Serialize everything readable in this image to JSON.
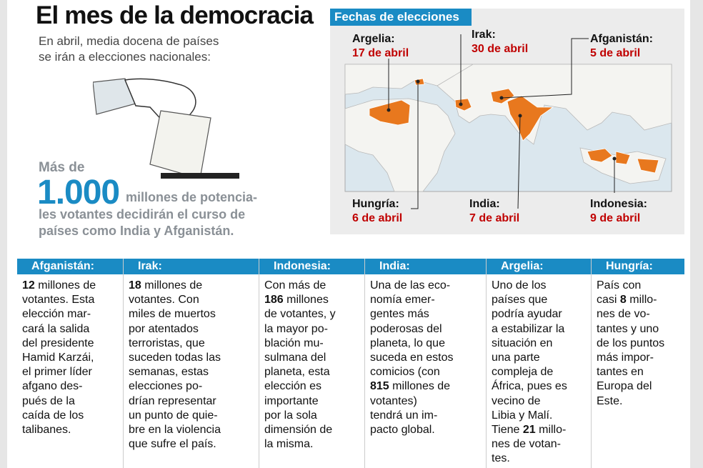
{
  "header": {
    "title": "El mes de la democracia",
    "subtitle_lines": [
      "En abril, media docena de países",
      "se irán a elecciones nacionales:"
    ]
  },
  "highlight": {
    "prefix": "Más de",
    "number": "1.000",
    "lines": [
      "millones de potencia-",
      "les votantes decidirán el curso de",
      "países como India y Afganistán."
    ]
  },
  "map": {
    "title": "Fechas de elecciones",
    "labels": [
      {
        "country": "Argelia:",
        "date": "17 de abril"
      },
      {
        "country": "Irak:",
        "date": "30 de abril"
      },
      {
        "country": "Afganistán:",
        "date": "5 de abril"
      },
      {
        "country": "Hungría:",
        "date": "6 de abril"
      },
      {
        "country": "India:",
        "date": "7 de abril"
      },
      {
        "country": "Indonesia:",
        "date": "9 de abril"
      }
    ]
  },
  "columns": [
    {
      "title": "Afganistán:",
      "lines": [
        [
          {
            "text": "12",
            "bold": true
          },
          " millones de"
        ],
        [
          "votantes. Esta"
        ],
        [
          "elección mar-"
        ],
        [
          "cará la salida"
        ],
        [
          "del presidente"
        ],
        [
          "Hamid Karzái,"
        ],
        [
          "el primer líder"
        ],
        [
          "afgano des-"
        ],
        [
          "pués de la"
        ],
        [
          "caída de los"
        ],
        [
          "talibanes."
        ]
      ]
    },
    {
      "title": "Irak:",
      "lines": [
        [
          {
            "text": "18",
            "bold": true
          },
          " millones de"
        ],
        [
          "votantes. Con"
        ],
        [
          "miles de muertos"
        ],
        [
          "por atentados"
        ],
        [
          "terroristas, que"
        ],
        [
          "suceden todas las"
        ],
        [
          "semanas, estas"
        ],
        [
          "elecciones po-"
        ],
        [
          "drían representar"
        ],
        [
          "un punto de quie-"
        ],
        [
          "bre en la violencia"
        ],
        [
          "que sufre el país."
        ]
      ]
    },
    {
      "title": "Indonesia:",
      "lines": [
        [
          "Con más de"
        ],
        [
          {
            "text": "186",
            "bold": true
          },
          " millones"
        ],
        [
          "de votantes, y"
        ],
        [
          "la mayor po-"
        ],
        [
          "blación mu-"
        ],
        [
          "sulmana del"
        ],
        [
          "planeta, esta"
        ],
        [
          "elección es"
        ],
        [
          "importante"
        ],
        [
          "por la sola"
        ],
        [
          "dimensión de"
        ],
        [
          "la misma."
        ]
      ]
    },
    {
      "title": "India:",
      "lines": [
        [
          "Una de las eco-"
        ],
        [
          "nomía emer-"
        ],
        [
          "gentes más"
        ],
        [
          "poderosas del"
        ],
        [
          "planeta, lo que"
        ],
        [
          "suceda en estos"
        ],
        [
          "comicios (con"
        ],
        [
          {
            "text": "815",
            "bold": true
          },
          " millones de"
        ],
        [
          "votantes)"
        ],
        [
          "tendrá un im-"
        ],
        [
          "pacto global."
        ]
      ]
    },
    {
      "title": "Argelia:",
      "lines": [
        [
          "Uno de los"
        ],
        [
          "países que"
        ],
        [
          "podría ayudar"
        ],
        [
          "a estabilizar la"
        ],
        [
          "situación en"
        ],
        [
          "una parte"
        ],
        [
          "compleja de"
        ],
        [
          "África, pues es"
        ],
        [
          "vecino de"
        ],
        [
          "Libia y Malí."
        ],
        [
          "Tiene ",
          {
            "text": "21",
            "bold": true
          },
          " millo-"
        ],
        [
          "nes de votan-"
        ],
        [
          "tes."
        ]
      ]
    },
    {
      "title": "Hungría:",
      "lines": [
        [
          "País con"
        ],
        [
          "casi ",
          {
            "text": "8",
            "bold": true
          },
          " millo-"
        ],
        [
          "nes de vo-"
        ],
        [
          "tantes y uno"
        ],
        [
          "de los puntos"
        ],
        [
          "más impor-"
        ],
        [
          "tantes en"
        ],
        [
          "Europa del"
        ],
        [
          "Este."
        ]
      ]
    }
  ]
}
